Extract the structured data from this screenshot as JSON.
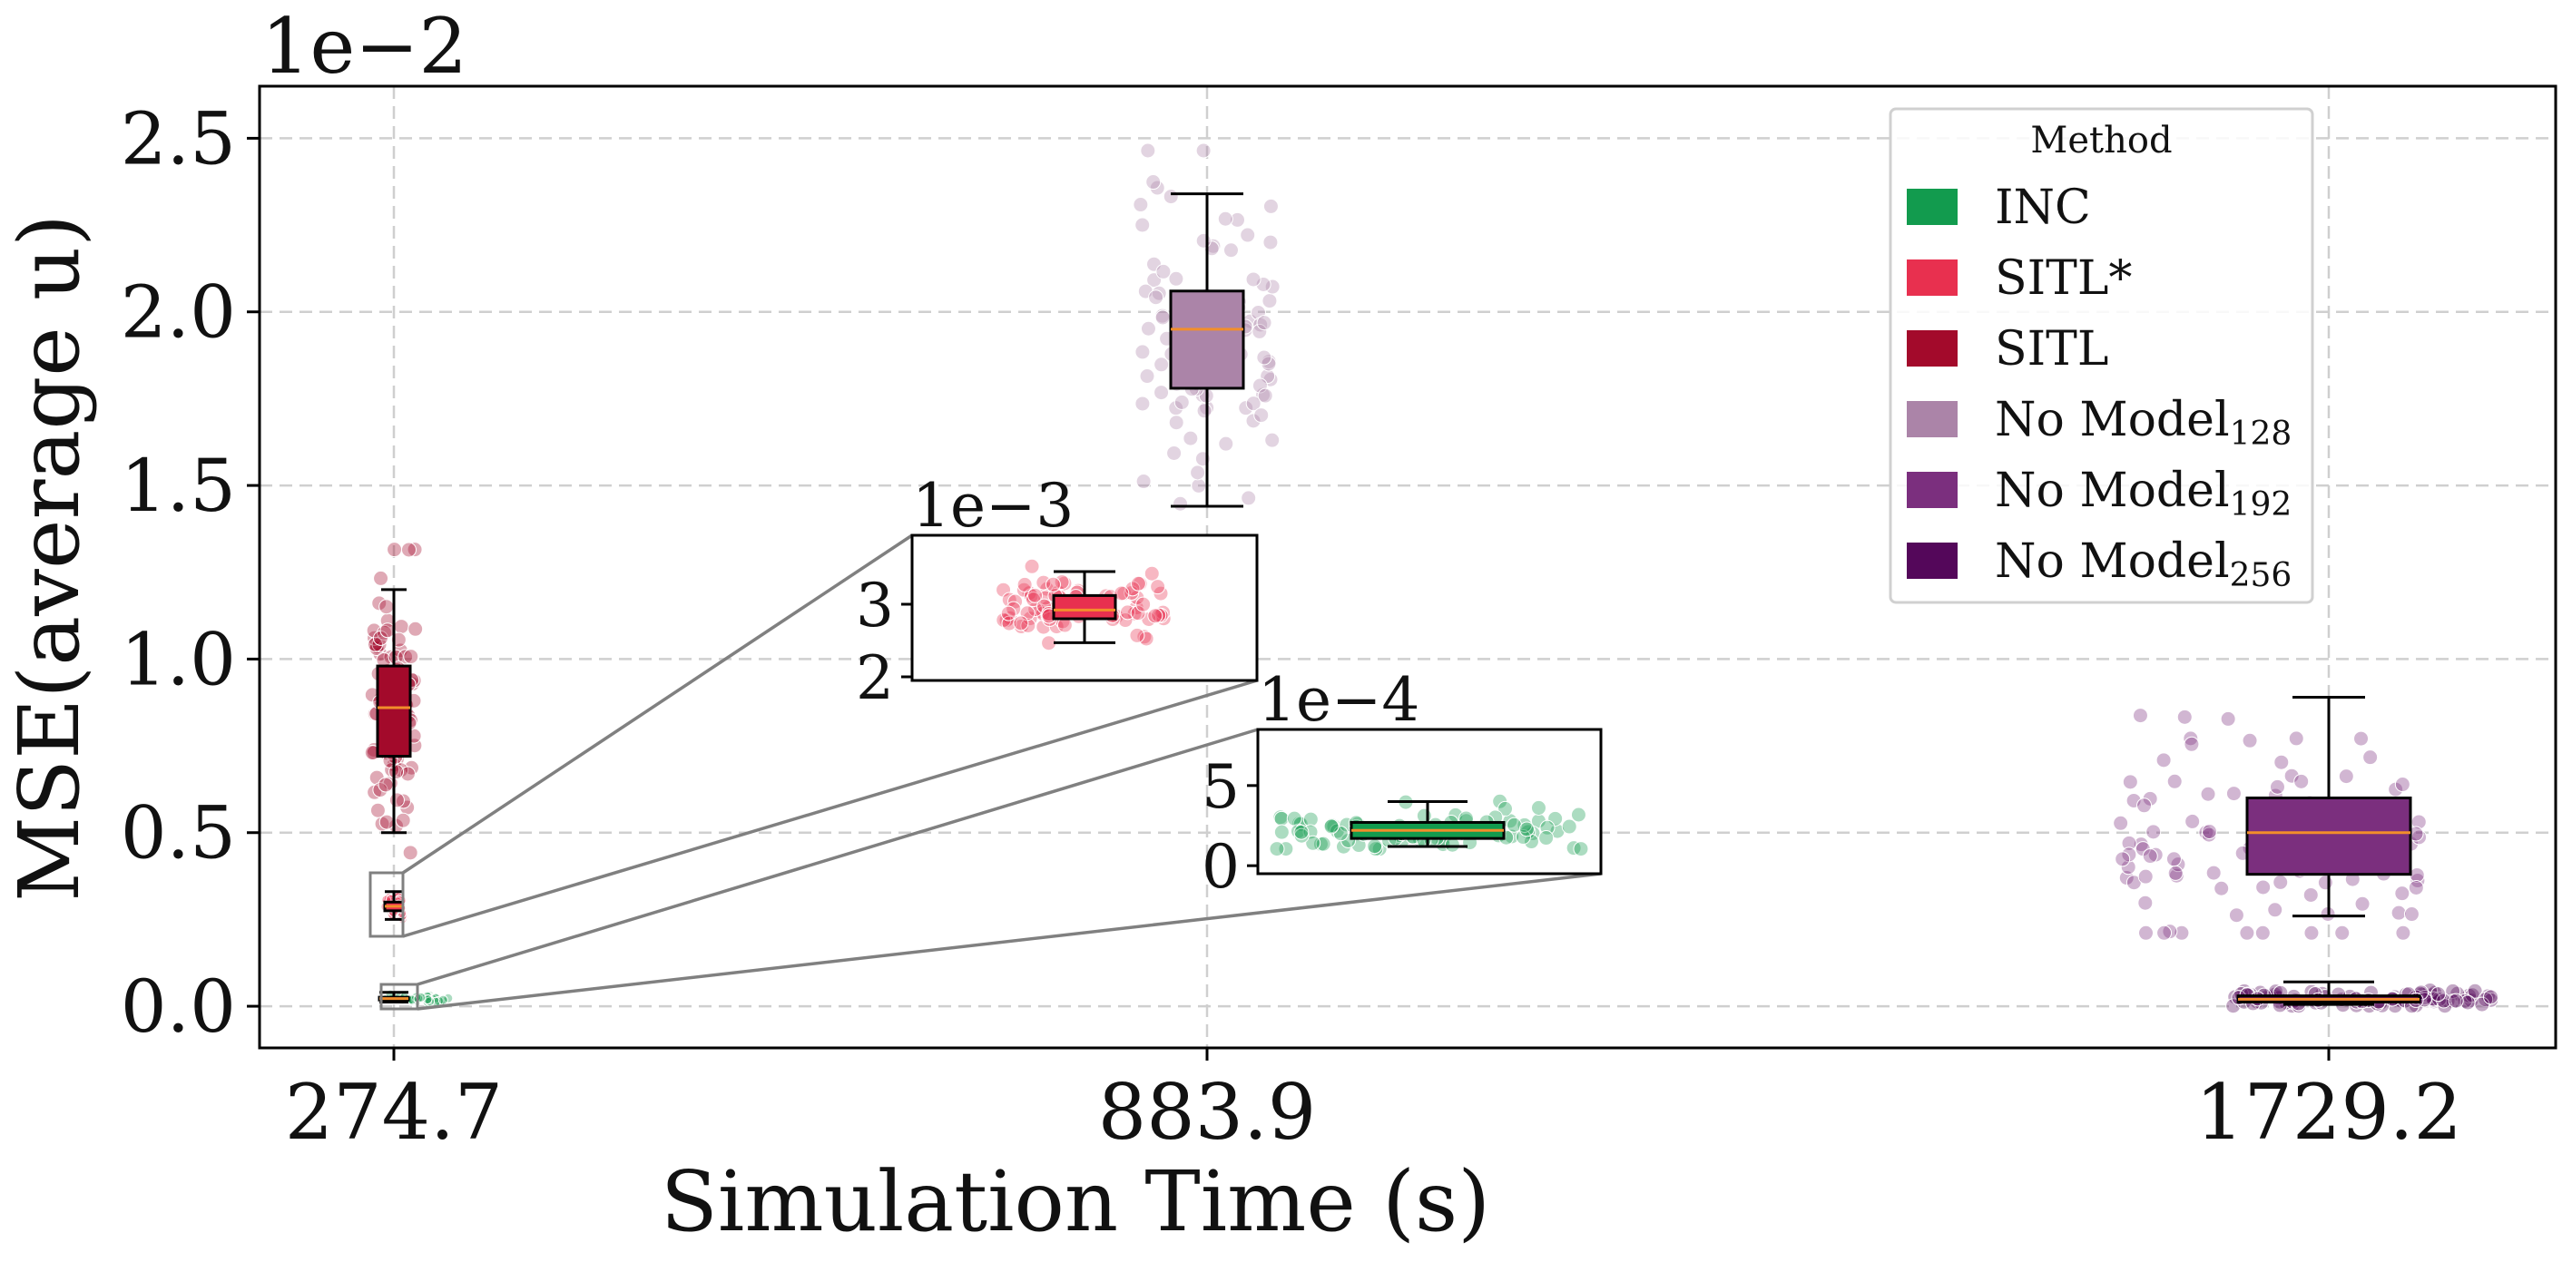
{
  "chart_data": {
    "type": "box",
    "ylabel": "MSE(average u)",
    "xlabel": "Simulation Time (s)",
    "y_scale_label": "1e−2",
    "y_scale_factor": 0.01,
    "ylim": [
      -0.12,
      2.65
    ],
    "yticks": [
      0.0,
      0.5,
      1.0,
      1.5,
      2.0,
      2.5
    ],
    "ytick_labels": [
      "0.0",
      "0.5",
      "1.0",
      "1.5",
      "2.0",
      "2.5"
    ],
    "x_positions": [
      274.7,
      883.9,
      1729.2
    ],
    "xtick_labels": [
      "274.7",
      "883.9",
      "1729.2"
    ],
    "grid": true,
    "legend": {
      "title": "Method",
      "placement": "upper-right",
      "entries": [
        {
          "label": "INC",
          "sub": "",
          "color": "#129b4e"
        },
        {
          "label": "SITL*",
          "sub": "",
          "color": "#e8304f"
        },
        {
          "label": "SITL",
          "sub": "",
          "color": "#a30a2b"
        },
        {
          "label": "No Model",
          "sub": "128",
          "color": "#ab84a8"
        },
        {
          "label": "No Model",
          "sub": "192",
          "color": "#7b2f7e"
        },
        {
          "label": "No Model",
          "sub": "256",
          "color": "#54075a"
        }
      ]
    },
    "series": [
      {
        "name": "INC",
        "x": 274.7,
        "color": "#129b4e",
        "whisker_low": 0.012,
        "q1": 0.018,
        "median": 0.022,
        "q3": 0.026,
        "whisker_high": 0.04
      },
      {
        "name": "SITL*",
        "x": 274.7,
        "color": "#e8304f",
        "whisker_low": 0.25,
        "q1": 0.275,
        "median": 0.288,
        "q3": 0.3,
        "whisker_high": 0.33
      },
      {
        "name": "SITL",
        "x": 274.7,
        "color": "#a30a2b",
        "whisker_low": 0.5,
        "q1": 0.72,
        "median": 0.86,
        "q3": 0.98,
        "whisker_high": 1.2
      },
      {
        "name": "No Model 128",
        "x": 883.9,
        "color": "#ab84a8",
        "whisker_low": 1.44,
        "q1": 1.78,
        "median": 1.95,
        "q3": 2.06,
        "whisker_high": 2.34
      },
      {
        "name": "No Model 192",
        "x": 1729.2,
        "color": "#7b2f7e",
        "whisker_low": 0.26,
        "q1": 0.38,
        "median": 0.5,
        "q3": 0.6,
        "whisker_high": 0.89
      },
      {
        "name": "No Model 256",
        "x": 1729.2,
        "color": "#54075a",
        "whisker_low": 0.005,
        "q1": 0.012,
        "median": 0.02,
        "q3": 0.03,
        "whisker_high": 0.07
      }
    ],
    "insets": [
      {
        "series": "SITL*",
        "scale_label": "1e−3",
        "ylim": [
          1.95,
          3.95
        ],
        "yticks": [
          2,
          3
        ],
        "ytick_labels": [
          "2",
          "3"
        ],
        "whisker_low": 2.47,
        "q1": 2.8,
        "median": 2.92,
        "q3": 3.12,
        "whisker_high": 3.45
      },
      {
        "series": "INC",
        "scale_label": "1e−4",
        "ylim": [
          -0.5,
          8.5
        ],
        "yticks": [
          0,
          5
        ],
        "ytick_labels": [
          "0",
          "5"
        ],
        "whisker_low": 1.2,
        "q1": 1.7,
        "median": 2.2,
        "q3": 2.7,
        "whisker_high": 4.0
      }
    ]
  }
}
